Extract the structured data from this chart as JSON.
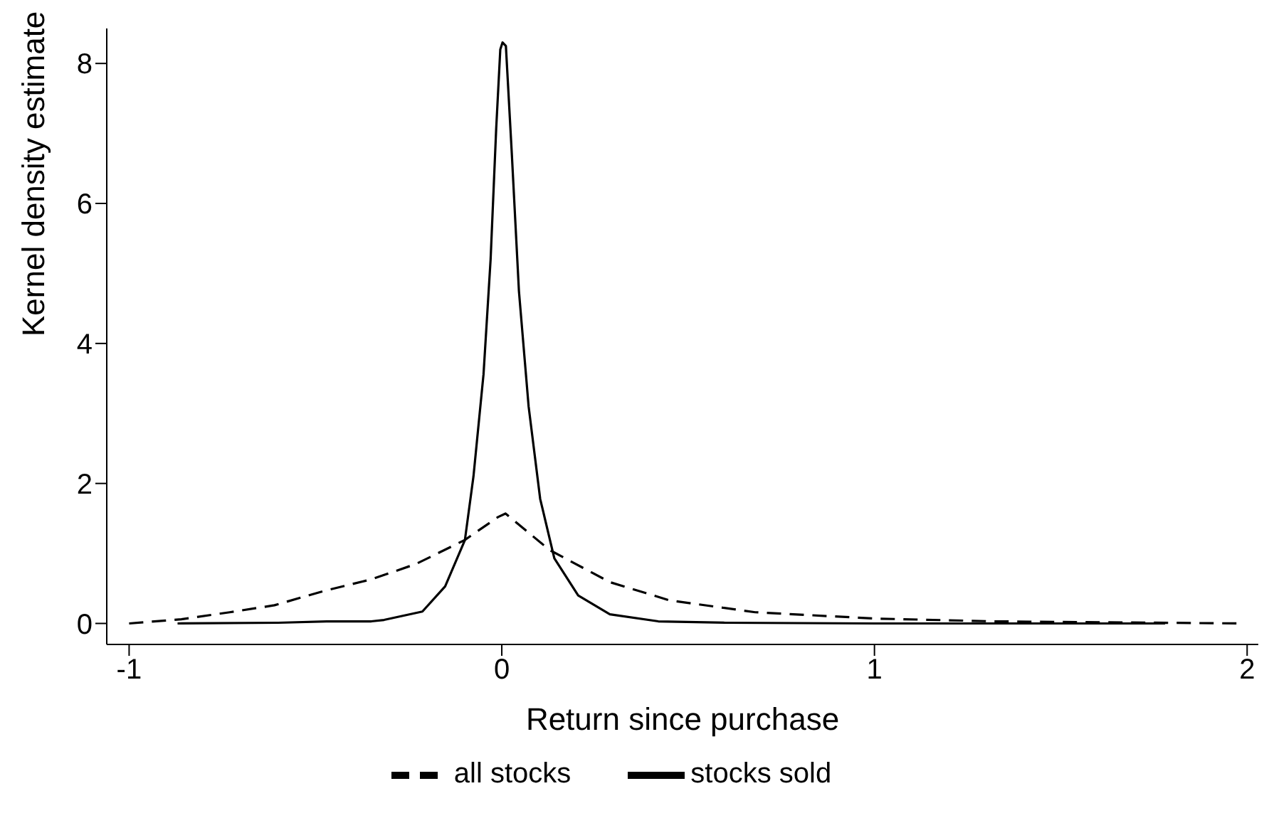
{
  "chart_data": {
    "type": "line",
    "xlabel": "Return since purchase",
    "ylabel": "Kernel density estimate",
    "xlim": [
      -1.06,
      2.03
    ],
    "ylim": [
      -0.3,
      8.5
    ],
    "xticks": [
      -1,
      0,
      1,
      2
    ],
    "yticks": [
      0,
      2,
      4,
      6,
      8
    ],
    "legend": "bottom",
    "marker": "none",
    "series": [
      {
        "name": "all stocks",
        "color": "#000000",
        "line_style": "dashed",
        "x": [
          -1.0,
          -0.86,
          -0.73,
          -0.61,
          -0.48,
          -0.35,
          -0.23,
          -0.1,
          -0.01,
          0.01,
          0.128,
          0.29,
          0.45,
          0.68,
          1.0,
          1.32,
          1.98
        ],
        "values": [
          0,
          0.06,
          0.16,
          0.26,
          0.46,
          0.63,
          0.85,
          1.19,
          1.52,
          1.57,
          1.05,
          0.59,
          0.33,
          0.16,
          0.07,
          0.03,
          0.0
        ]
      },
      {
        "name": "stocks sold",
        "color": "#000000",
        "line_style": "solid",
        "x": [
          -0.87,
          -0.6,
          -0.47,
          -0.35,
          -0.316,
          -0.213,
          -0.152,
          -0.099,
          -0.076,
          -0.049,
          -0.03,
          -0.015,
          -0.004,
          0.002,
          0.011,
          0.027,
          0.046,
          0.072,
          0.103,
          0.141,
          0.205,
          0.29,
          0.42,
          0.6,
          1.0,
          1.78
        ],
        "values": [
          0.0,
          0.01,
          0.03,
          0.03,
          0.05,
          0.17,
          0.53,
          1.19,
          2.1,
          3.56,
          5.2,
          7.07,
          8.2,
          8.3,
          8.25,
          6.7,
          4.75,
          3.1,
          1.78,
          0.93,
          0.4,
          0.13,
          0.03,
          0.01,
          0.0,
          0.0
        ]
      }
    ]
  }
}
